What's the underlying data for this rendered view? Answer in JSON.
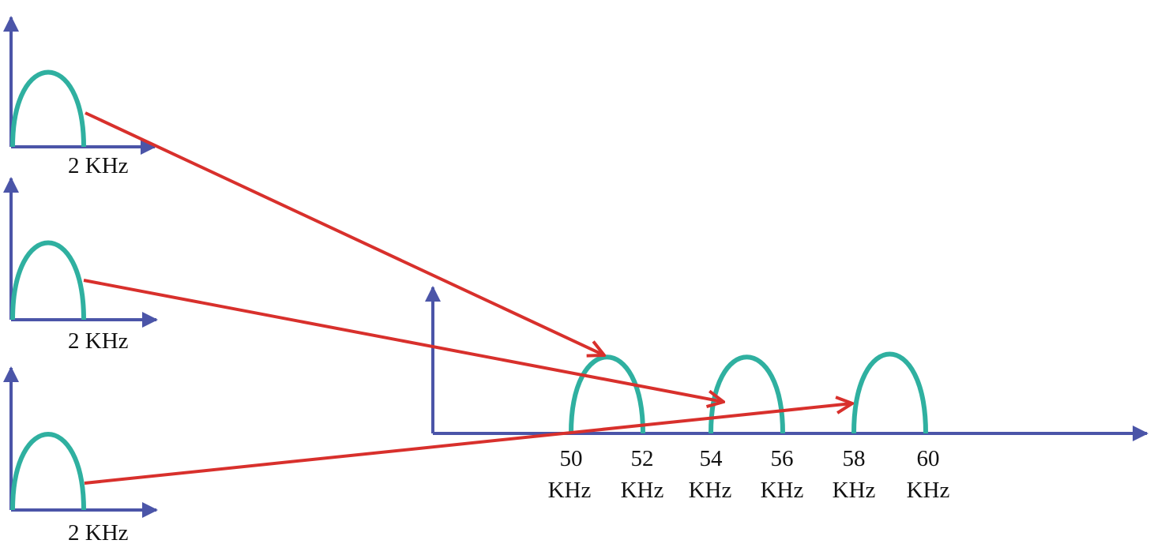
{
  "colors": {
    "axis": "#4b55a8",
    "spectrum": "#2fb0a0",
    "arrow": "#d8302c",
    "text": "#111111"
  },
  "inputs": [
    {
      "label": "2 KHz"
    },
    {
      "label": "2 KHz"
    },
    {
      "label": "2 KHz"
    }
  ],
  "output": {
    "ticks": [
      {
        "value": "50",
        "unit": "KHz"
      },
      {
        "value": "52",
        "unit": "KHz"
      },
      {
        "value": "54",
        "unit": "KHz"
      },
      {
        "value": "56",
        "unit": "KHz"
      },
      {
        "value": "58",
        "unit": "KHz"
      },
      {
        "value": "60",
        "unit": "KHz"
      }
    ]
  }
}
